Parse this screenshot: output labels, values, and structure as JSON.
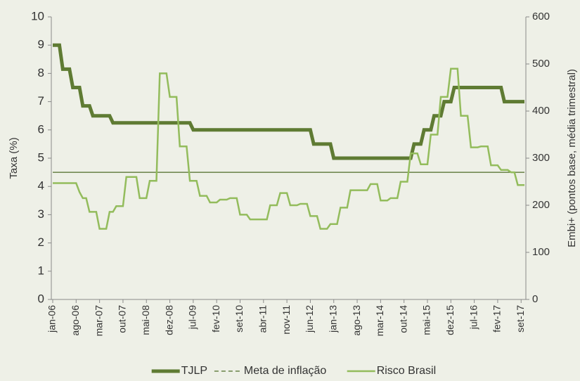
{
  "chart_data": {
    "type": "line",
    "y_label": "Taxa (%)",
    "y2_label": "Embi+ (pontos base, média trimestral)",
    "categories": [
      "jan-06",
      null,
      null,
      null,
      null,
      null,
      null,
      "ago-06",
      null,
      null,
      null,
      null,
      null,
      null,
      "mar-07",
      null,
      null,
      null,
      null,
      null,
      null,
      "out-07",
      null,
      null,
      null,
      null,
      null,
      null,
      "mai-08",
      null,
      null,
      null,
      null,
      null,
      null,
      "dez-08",
      null,
      null,
      null,
      null,
      null,
      null,
      "jul-09",
      null,
      null,
      null,
      null,
      null,
      null,
      "fev-10",
      null,
      null,
      null,
      null,
      null,
      null,
      "set-10",
      null,
      null,
      null,
      null,
      null,
      null,
      "abr-11",
      null,
      null,
      null,
      null,
      null,
      null,
      "nov-11",
      null,
      null,
      null,
      null,
      null,
      null,
      "jun-12",
      null,
      null,
      null,
      null,
      null,
      null,
      "jan-13",
      null,
      null,
      null,
      null,
      null,
      null,
      "ago-13",
      null,
      null,
      null,
      null,
      null,
      null,
      "mar-14",
      null,
      null,
      null,
      null,
      null,
      null,
      "out-14",
      null,
      null,
      null,
      null,
      null,
      null,
      "mai-15",
      null,
      null,
      null,
      null,
      null,
      null,
      "dez-15",
      null,
      null,
      null,
      null,
      null,
      null,
      "jul-16",
      null,
      null,
      null,
      null,
      null,
      null,
      "fev-17",
      null,
      null,
      null,
      null,
      null,
      null,
      "set-17",
      null
    ],
    "series": [
      {
        "name": "TJLP",
        "color": "#5f7b33",
        "width": 5,
        "values": [
          9,
          9,
          9,
          8.15,
          8.15,
          8.15,
          7.5,
          7.5,
          7.5,
          6.85,
          6.85,
          6.85,
          6.5,
          6.5,
          6.5,
          6.5,
          6.5,
          6.5,
          6.25,
          6.25,
          6.25,
          6.25,
          6.25,
          6.25,
          6.25,
          6.25,
          6.25,
          6.25,
          6.25,
          6.25,
          6.25,
          6.25,
          6.25,
          6.25,
          6.25,
          6.25,
          6.25,
          6.25,
          6.25,
          6.25,
          6.25,
          6.25,
          6,
          6,
          6,
          6,
          6,
          6,
          6,
          6,
          6,
          6,
          6,
          6,
          6,
          6,
          6,
          6,
          6,
          6,
          6,
          6,
          6,
          6,
          6,
          6,
          6,
          6,
          6,
          6,
          6,
          6,
          6,
          6,
          6,
          6,
          6,
          6,
          5.5,
          5.5,
          5.5,
          5.5,
          5.5,
          5.5,
          5,
          5,
          5,
          5,
          5,
          5,
          5,
          5,
          5,
          5,
          5,
          5,
          5,
          5,
          5,
          5,
          5,
          5,
          5,
          5,
          5,
          5,
          5,
          5,
          5.5,
          5.5,
          5.5,
          6,
          6,
          6,
          6.5,
          6.5,
          6.5,
          7,
          7,
          7,
          7.5,
          7.5,
          7.5,
          7.5,
          7.5,
          7.5,
          7.5,
          7.5,
          7.5,
          7.5,
          7.5,
          7.5,
          7.5,
          7.5,
          7.5,
          7,
          7,
          7,
          7,
          7,
          7,
          7
        ]
      },
      {
        "name": "Meta de inflação",
        "color": "#4d6b27",
        "width": 1.3,
        "dash": true,
        "values": [
          4.5,
          4.5,
          4.5,
          4.5,
          4.5,
          4.5,
          4.5,
          4.5,
          4.5,
          4.5,
          4.5,
          4.5,
          4.5,
          4.5,
          4.5,
          4.5,
          4.5,
          4.5,
          4.5,
          4.5,
          4.5,
          4.5,
          4.5,
          4.5,
          4.5,
          4.5,
          4.5,
          4.5,
          4.5,
          4.5,
          4.5,
          4.5,
          4.5,
          4.5,
          4.5,
          4.5,
          4.5,
          4.5,
          4.5,
          4.5,
          4.5,
          4.5,
          4.5,
          4.5,
          4.5,
          4.5,
          4.5,
          4.5,
          4.5,
          4.5,
          4.5,
          4.5,
          4.5,
          4.5,
          4.5,
          4.5,
          4.5,
          4.5,
          4.5,
          4.5,
          4.5,
          4.5,
          4.5,
          4.5,
          4.5,
          4.5,
          4.5,
          4.5,
          4.5,
          4.5,
          4.5,
          4.5,
          4.5,
          4.5,
          4.5,
          4.5,
          4.5,
          4.5,
          4.5,
          4.5,
          4.5,
          4.5,
          4.5,
          4.5,
          4.5,
          4.5,
          4.5,
          4.5,
          4.5,
          4.5,
          4.5,
          4.5,
          4.5,
          4.5,
          4.5,
          4.5,
          4.5,
          4.5,
          4.5,
          4.5,
          4.5,
          4.5,
          4.5,
          4.5,
          4.5,
          4.5,
          4.5,
          4.5,
          4.5,
          4.5,
          4.5,
          4.5,
          4.5,
          4.5,
          4.5,
          4.5,
          4.5,
          4.5,
          4.5,
          4.5,
          4.5,
          4.5,
          4.5,
          4.5,
          4.5,
          4.5,
          4.5,
          4.5,
          4.5,
          4.5,
          4.5,
          4.5,
          4.5,
          4.5,
          4.5,
          4.5,
          4.5,
          4.5,
          4.5,
          4.5,
          4.5,
          4.5
        ]
      },
      {
        "name": "Risco Brasil",
        "color": "#93bc5c",
        "width": 2.5,
        "axis": "y2",
        "values": [
          247,
          247,
          247,
          247,
          247,
          247,
          247,
          247,
          228,
          215,
          215,
          186,
          186,
          186,
          150,
          150,
          150,
          186,
          186,
          198,
          198,
          198,
          260,
          260,
          260,
          260,
          215,
          215,
          215,
          252,
          252,
          252,
          480,
          480,
          480,
          430,
          430,
          430,
          325,
          325,
          325,
          252,
          252,
          252,
          220,
          220,
          220,
          206,
          206,
          206,
          212,
          212,
          212,
          215,
          215,
          215,
          180,
          180,
          180,
          170,
          170,
          170,
          170,
          170,
          170,
          200,
          200,
          200,
          226,
          226,
          226,
          200,
          200,
          200,
          203,
          203,
          203,
          177,
          177,
          177,
          150,
          150,
          150,
          160,
          160,
          160,
          195,
          195,
          195,
          232,
          232,
          232,
          232,
          232,
          232,
          245,
          245,
          245,
          210,
          210,
          210,
          215,
          215,
          215,
          250,
          250,
          250,
          310,
          310,
          310,
          287,
          287,
          287,
          350,
          350,
          350,
          430,
          430,
          430,
          490,
          490,
          490,
          390,
          390,
          390,
          323,
          323,
          323,
          325,
          325,
          325,
          285,
          285,
          285,
          275,
          275,
          275,
          270,
          270,
          243,
          243,
          243
        ]
      }
    ],
    "ylim": [
      0,
      10
    ],
    "yticks": [
      0,
      1,
      2,
      3,
      4,
      5,
      6,
      7,
      8,
      9,
      10
    ],
    "y2lim": [
      0,
      600
    ],
    "y2ticks": [
      0,
      100,
      200,
      300,
      400,
      500,
      600
    ],
    "legend": "bottom"
  }
}
